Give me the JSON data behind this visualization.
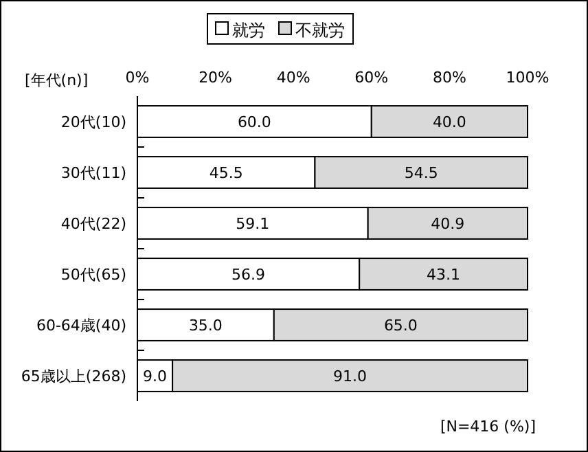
{
  "chart_data": {
    "type": "bar",
    "orientation": "horizontal",
    "stacked": true,
    "ylabel": "[年代(n)]",
    "categories": [
      "20代(10)",
      "30代(11)",
      "40代(22)",
      "50代(65)",
      "60-64歳(40)",
      "65歳以上(268)"
    ],
    "series": [
      {
        "name": "就労",
        "color": "#ffffff",
        "values": [
          60.0,
          45.5,
          59.1,
          56.9,
          35.0,
          9.0
        ],
        "value_labels": [
          "60.0",
          "45.5",
          "59.1",
          "56.9",
          "35.0",
          "9.0"
        ]
      },
      {
        "name": "不就労",
        "color": "#d9d9d9",
        "values": [
          40.0,
          54.5,
          40.9,
          43.1,
          65.0,
          91.0
        ],
        "value_labels": [
          "40.0",
          "54.5",
          "40.9",
          "43.1",
          "65.0",
          "91.0"
        ]
      }
    ],
    "xlim": [
      0,
      100
    ],
    "xticks": [
      {
        "value": 0,
        "label": "0%"
      },
      {
        "value": 20,
        "label": "20%"
      },
      {
        "value": 40,
        "label": "40%"
      },
      {
        "value": 60,
        "label": "60%"
      },
      {
        "value": 80,
        "label": "80%"
      },
      {
        "value": 100,
        "label": "100%"
      }
    ],
    "legend": "top",
    "annotations": [
      "[N=416 (%)]"
    ]
  }
}
